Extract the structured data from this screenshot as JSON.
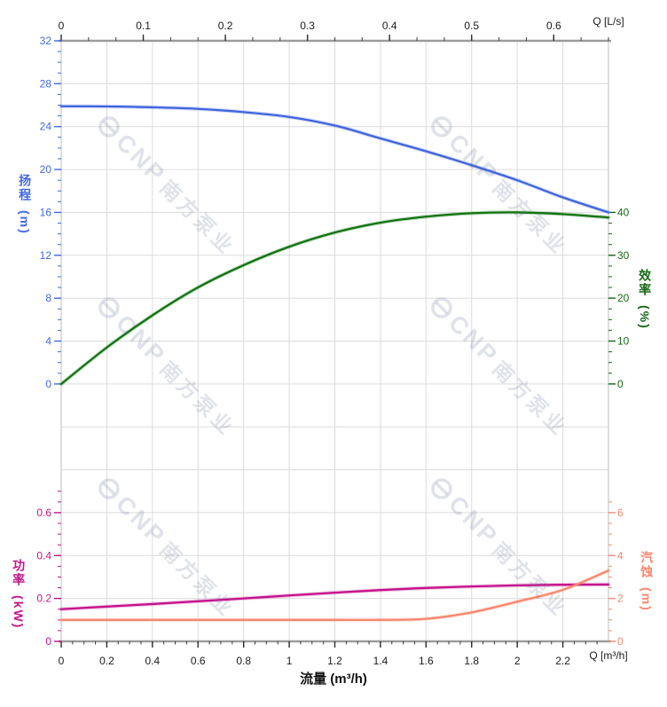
{
  "top_axis": {
    "label": "Q [L/s]",
    "major_ticks": [
      0,
      0.1,
      0.2,
      0.3,
      0.4,
      0.5,
      0.6
    ],
    "color": "#1a1a1a"
  },
  "bottom_axis": {
    "label": "Q [m³/h]",
    "title": "流量 (m³/h)",
    "major_ticks": [
      0,
      0.2,
      0.4,
      0.6,
      0.8,
      1,
      1.2,
      1.4,
      1.6,
      1.8,
      2,
      2.2
    ],
    "color": "#1a1a1a"
  },
  "head_axis": {
    "title": "扬程",
    "unit": "(m)",
    "color": "#4169e1",
    "major_ticks": [
      0,
      4,
      8,
      12,
      16,
      20,
      24,
      28,
      32
    ]
  },
  "efficiency_axis": {
    "title": "效率",
    "unit": "(%)",
    "color": "#156915",
    "major_ticks": [
      0,
      10,
      20,
      30,
      40
    ]
  },
  "power_axis": {
    "title": "功率",
    "unit": "(kW)",
    "color": "#c0168a",
    "major_ticks": [
      0,
      0.2,
      0.4,
      0.6
    ]
  },
  "npsh_axis": {
    "title": "汽蚀",
    "unit": "(m)",
    "color": "#f8876f",
    "major_ticks": [
      0,
      2,
      4,
      6
    ]
  },
  "watermark": {
    "text_en": "CNP",
    "text_cn": "南方泵业"
  },
  "chart_data": {
    "type": "line",
    "x_label_bottom": "流量 (m³/h)",
    "x_unit_bottom": "m³/h",
    "x_unit_top": "L/s",
    "x_m3h": [
      0,
      0.2,
      0.4,
      0.6,
      0.8,
      1.0,
      1.2,
      1.4,
      1.6,
      1.8,
      2.0,
      2.2,
      2.4
    ],
    "x_range_m3h": [
      0,
      2.4
    ],
    "top_axis_conversion_m3h_per_Ls": 3.6,
    "grid": true,
    "series": [
      {
        "name": "head",
        "label_cn": "扬程",
        "unit": "m",
        "color": "#4065dd",
        "axis_range": [
          0,
          32
        ],
        "values": [
          25.9,
          25.88,
          25.8,
          25.65,
          25.35,
          24.9,
          24.1,
          22.9,
          21.7,
          20.4,
          19.0,
          17.4,
          16.0
        ]
      },
      {
        "name": "efficiency",
        "label_cn": "效率",
        "unit": "%",
        "color": "#107410",
        "axis_range": [
          0,
          40
        ],
        "values": [
          0,
          8.5,
          16,
          22.5,
          27.7,
          32,
          35.3,
          37.6,
          39,
          39.8,
          40,
          39.6,
          38.8
        ]
      },
      {
        "name": "power",
        "label_cn": "功率",
        "unit": "kW",
        "color": "#c4128c",
        "axis_range": [
          0,
          0.7
        ],
        "values": [
          0.15,
          0.162,
          0.174,
          0.187,
          0.2,
          0.214,
          0.227,
          0.239,
          0.249,
          0.256,
          0.261,
          0.264,
          0.265
        ]
      },
      {
        "name": "npsh",
        "label_cn": "汽蚀",
        "unit": "m",
        "color": "#f8876f",
        "axis_range": [
          0,
          7
        ],
        "values": [
          1.0,
          1.0,
          1.0,
          1.0,
          1.0,
          1.0,
          1.0,
          1.0,
          1.05,
          1.35,
          1.85,
          2.4,
          3.3
        ]
      }
    ]
  }
}
